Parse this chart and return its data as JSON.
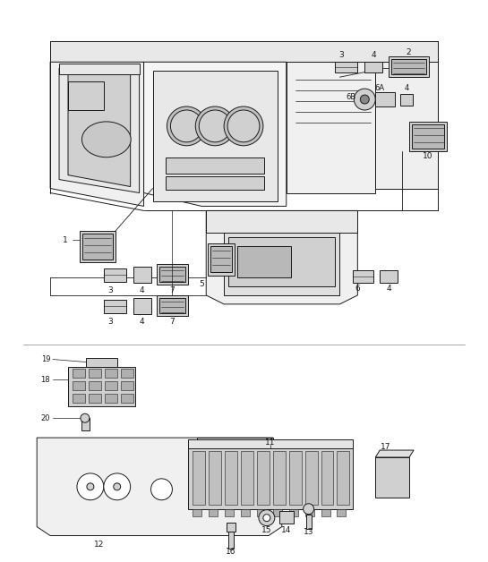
{
  "bg_color": "#ffffff",
  "lc": "#1a1a1a",
  "lw": 0.7,
  "fig_w": 5.45,
  "fig_h": 6.28,
  "dpi": 100
}
